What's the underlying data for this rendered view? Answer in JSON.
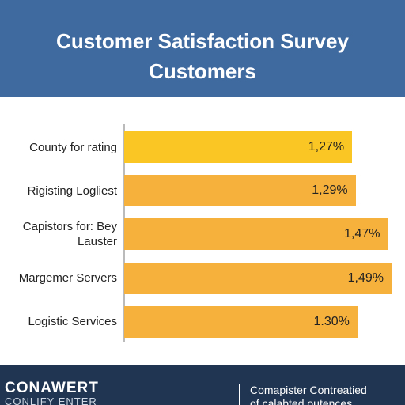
{
  "chart_data": {
    "type": "hbar",
    "title": "Customer Satisfaction Survey",
    "subtitle": "Customers",
    "categories": [
      "County for rating",
      "Rigisting Logliest",
      "Capistors for: Bey Lauster",
      "Margemer Servers",
      "Logistic Services"
    ],
    "values": [
      1.27,
      1.29,
      1.47,
      1.49,
      1.3
    ],
    "value_labels": [
      "1,27%",
      "1,29%",
      "1,47%",
      "1,49%",
      "1.30%"
    ],
    "colors": [
      "#f9c623",
      "#f6b03c",
      "#f6b03c",
      "#f6b03c",
      "#f6b03c"
    ]
  },
  "footer": {
    "brand": "CONAWERT",
    "brand_sub": "CONLIFY ENTER",
    "note": "Comapister Contreatied",
    "note_sub": "of calabted outences"
  }
}
